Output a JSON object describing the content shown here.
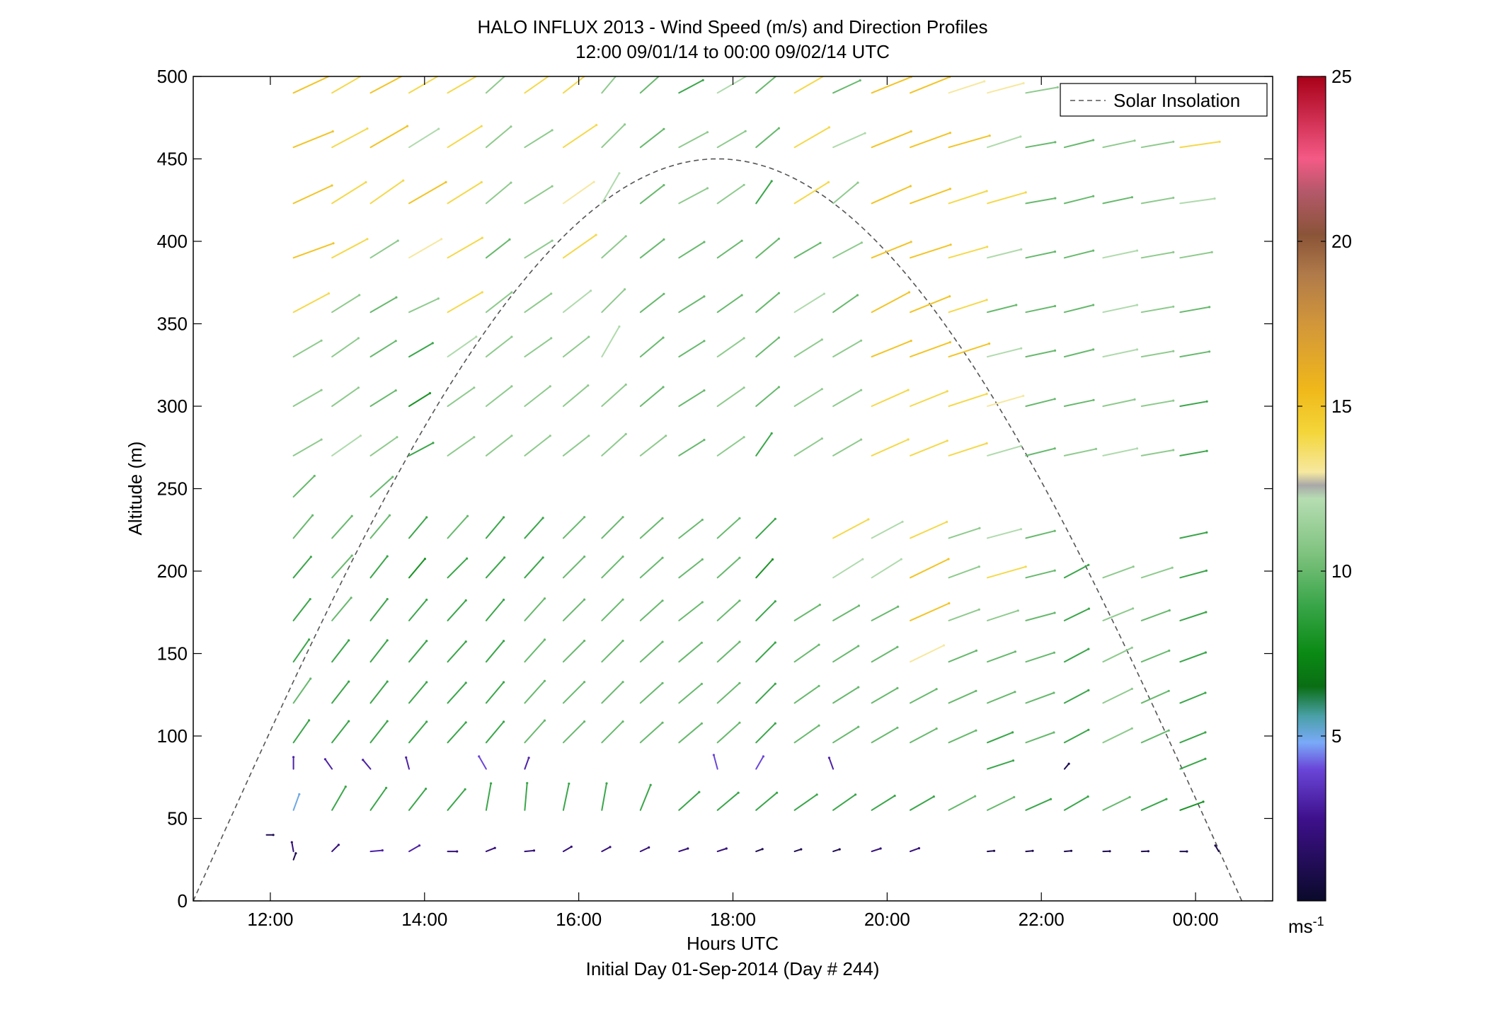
{
  "chart_data": {
    "type": "wind_barb_profile",
    "title": "HALO INFLUX 2013 - Wind Speed (m/s) and Direction Profiles",
    "subtitle": "12:00 09/01/14 to 00:00 09/02/14  UTC",
    "xlabel": "Hours UTC",
    "xlabel2": "Initial Day 01-Sep-2014 (Day # 244)",
    "ylabel": "Altitude (m)",
    "xlim": [
      11.0,
      25.0
    ],
    "ylim": [
      0,
      500
    ],
    "x_ticks": [
      12,
      14,
      16,
      18,
      20,
      22,
      24
    ],
    "x_tick_labels": [
      "12:00",
      "14:00",
      "16:00",
      "18:00",
      "20:00",
      "22:00",
      "00:00"
    ],
    "y_ticks": [
      0,
      50,
      100,
      150,
      200,
      250,
      300,
      350,
      400,
      450,
      500
    ],
    "y_tick_labels": [
      "0",
      "50",
      "100",
      "150",
      "200",
      "250",
      "300",
      "350",
      "400",
      "450",
      "500"
    ],
    "legend": {
      "entries": [
        "Solar Insolation"
      ],
      "placement": "top-right"
    },
    "colorbar": {
      "range": [
        0,
        25
      ],
      "ticks": [
        5,
        10,
        15,
        20,
        25
      ],
      "tick_labels": [
        "5",
        "10",
        "15",
        "20",
        "25"
      ],
      "unit_base": "ms",
      "unit_exp": "-1",
      "colormap": [
        {
          "v": 0,
          "c": "#0a0a2a"
        },
        {
          "v": 2.5,
          "c": "#3e108c"
        },
        {
          "v": 4.0,
          "c": "#6a46d8"
        },
        {
          "v": 4.8,
          "c": "#7aaaf8"
        },
        {
          "v": 5.6,
          "c": "#4aa0a8"
        },
        {
          "v": 6.5,
          "c": "#0a6e14"
        },
        {
          "v": 7.5,
          "c": "#0a8a14"
        },
        {
          "v": 9.0,
          "c": "#3aa64a"
        },
        {
          "v": 10.5,
          "c": "#7ec27e"
        },
        {
          "v": 12.2,
          "c": "#b6ddb2"
        },
        {
          "v": 12.6,
          "c": "#a8a8a8"
        },
        {
          "v": 13.0,
          "c": "#f6e8a0"
        },
        {
          "v": 14.2,
          "c": "#f4d63a"
        },
        {
          "v": 15.5,
          "c": "#f0b81a"
        },
        {
          "v": 17.5,
          "c": "#d2963a"
        },
        {
          "v": 19.0,
          "c": "#b07a4a"
        },
        {
          "v": 20.2,
          "c": "#8a5438"
        },
        {
          "v": 21.5,
          "c": "#b4586a"
        },
        {
          "v": 22.5,
          "c": "#f45a86"
        },
        {
          "v": 25.0,
          "c": "#a80018"
        }
      ]
    },
    "solar_insolation": {
      "x_start": 11.0,
      "x_peak": 17.8,
      "x_end": 24.6,
      "peak_altitude": 450,
      "color": "#555555",
      "dash": "dashed"
    },
    "profile_times": [
      12.3,
      12.8,
      13.3,
      13.8,
      14.3,
      14.8,
      15.3,
      15.8,
      16.3,
      16.8,
      17.3,
      17.8,
      18.3,
      18.8,
      19.3,
      19.8,
      20.3,
      20.8,
      21.3,
      21.8,
      22.3,
      22.8,
      23.3,
      23.8
    ],
    "levels": [
      {
        "alt": 490,
        "speed": [
          15,
          14,
          15,
          14,
          14,
          11,
          14,
          14,
          11,
          10,
          9,
          12,
          10,
          14,
          10,
          15,
          15,
          13,
          13,
          11,
          10,
          10,
          11,
          13
        ],
        "dir_deg": [
          65,
          60,
          62,
          60,
          60,
          48,
          55,
          52,
          40,
          48,
          62,
          60,
          50,
          60,
          65,
          68,
          68,
          72,
          75,
          80,
          76,
          78,
          80,
          82
        ]
      },
      {
        "alt": 457,
        "speed": [
          15,
          14,
          15,
          12,
          14,
          11,
          11,
          14,
          11,
          10,
          11,
          11,
          10,
          14,
          12,
          15,
          15,
          15,
          12,
          10,
          10,
          11,
          11,
          14
        ],
        "dir_deg": [
          68,
          62,
          60,
          58,
          58,
          50,
          58,
          56,
          45,
          52,
          62,
          60,
          50,
          60,
          66,
          68,
          70,
          74,
          72,
          80,
          76,
          78,
          80,
          82
        ]
      },
      {
        "alt": 423,
        "speed": [
          15,
          14,
          14,
          15,
          14,
          11,
          11,
          13,
          12,
          10,
          11,
          11,
          9,
          14,
          11,
          15,
          15,
          14,
          14,
          10,
          10,
          10,
          11,
          12
        ],
        "dir_deg": [
          65,
          58,
          55,
          60,
          58,
          50,
          58,
          55,
          30,
          52,
          62,
          55,
          35,
          58,
          50,
          66,
          70,
          72,
          74,
          80,
          76,
          78,
          80,
          82
        ]
      },
      {
        "alt": 390,
        "speed": [
          15,
          14,
          11,
          13,
          14,
          10,
          11,
          14,
          11,
          10,
          10,
          10,
          10,
          10,
          11,
          15,
          15,
          14,
          12,
          10,
          10,
          12,
          11,
          11
        ],
        "dir_deg": [
          70,
          62,
          58,
          60,
          60,
          52,
          58,
          55,
          48,
          52,
          58,
          55,
          50,
          60,
          62,
          68,
          72,
          74,
          76,
          78,
          76,
          78,
          80,
          80
        ]
      },
      {
        "alt": 357,
        "speed": [
          14,
          11,
          10,
          11,
          14,
          11,
          11,
          12,
          11,
          10,
          10,
          10,
          10,
          12,
          10,
          15,
          15,
          14,
          10,
          10,
          10,
          12,
          11,
          10
        ],
        "dir_deg": [
          62,
          58,
          60,
          65,
          60,
          52,
          55,
          52,
          45,
          52,
          58,
          55,
          50,
          58,
          55,
          62,
          68,
          72,
          76,
          78,
          76,
          78,
          80,
          80
        ]
      },
      {
        "alt": 330,
        "speed": [
          11,
          11,
          10,
          9,
          12,
          11,
          11,
          11,
          12,
          10,
          10,
          11,
          10,
          11,
          11,
          15,
          15,
          15,
          12,
          10,
          10,
          12,
          11,
          10
        ],
        "dir_deg": [
          60,
          55,
          58,
          60,
          55,
          52,
          55,
          52,
          30,
          50,
          58,
          55,
          50,
          58,
          60,
          68,
          70,
          72,
          76,
          78,
          76,
          78,
          80,
          80
        ]
      },
      {
        "alt": 300,
        "speed": [
          11,
          11,
          10,
          8,
          11,
          11,
          11,
          11,
          11,
          10,
          10,
          11,
          10,
          11,
          11,
          14,
          14,
          14,
          13,
          10,
          10,
          11,
          11,
          9
        ],
        "dir_deg": [
          60,
          55,
          58,
          58,
          55,
          52,
          52,
          50,
          48,
          50,
          58,
          55,
          50,
          58,
          60,
          66,
          68,
          72,
          74,
          76,
          78,
          78,
          80,
          80
        ]
      },
      {
        "alt": 270,
        "speed": [
          11,
          12,
          11,
          9,
          11,
          11,
          11,
          11,
          11,
          11,
          10,
          11,
          9,
          11,
          11,
          14,
          14,
          14,
          12,
          10,
          11,
          12,
          11,
          9
        ],
        "dir_deg": [
          60,
          55,
          55,
          62,
          55,
          52,
          52,
          52,
          48,
          52,
          58,
          55,
          35,
          58,
          60,
          66,
          68,
          72,
          74,
          76,
          78,
          78,
          80,
          80
        ]
      },
      {
        "alt": 245,
        "speed": [
          10,
          null,
          10,
          null,
          null,
          null,
          null,
          null,
          null,
          null,
          null,
          null,
          null,
          null,
          null,
          null,
          null,
          null,
          null,
          null,
          null,
          null,
          null,
          null
        ],
        "dir_deg": [
          45,
          null,
          48,
          null,
          null,
          null,
          null,
          null,
          null,
          null,
          null,
          null,
          null,
          null,
          null,
          null,
          null,
          null,
          null,
          null,
          null,
          null,
          null,
          null
        ]
      },
      {
        "alt": 220,
        "speed": [
          10,
          10,
          10,
          9,
          10,
          9,
          9,
          10,
          10,
          10,
          10,
          10,
          9,
          null,
          14,
          12,
          14,
          11,
          12,
          10,
          null,
          null,
          null,
          9
        ],
        "dir_deg": [
          40,
          42,
          40,
          40,
          42,
          40,
          42,
          45,
          45,
          48,
          52,
          48,
          45,
          null,
          62,
          62,
          66,
          72,
          75,
          76,
          null,
          null,
          null,
          78
        ]
      },
      {
        "alt": 196,
        "speed": [
          9,
          10,
          9,
          8,
          9,
          9,
          9,
          10,
          10,
          10,
          10,
          10,
          8,
          null,
          12,
          12,
          15,
          11,
          14,
          10,
          9,
          11,
          11,
          9
        ],
        "dir_deg": [
          40,
          42,
          38,
          40,
          45,
          42,
          42,
          45,
          45,
          48,
          52,
          48,
          42,
          null,
          58,
          58,
          64,
          70,
          74,
          76,
          62,
          70,
          72,
          75
        ]
      },
      {
        "alt": 170,
        "speed": [
          9,
          10,
          9,
          9,
          9,
          9,
          10,
          10,
          10,
          10,
          10,
          10,
          9,
          10,
          10,
          10,
          15,
          11,
          11,
          10,
          9,
          11,
          10,
          9
        ],
        "dir_deg": [
          38,
          40,
          38,
          40,
          42,
          40,
          42,
          45,
          45,
          48,
          52,
          48,
          45,
          58,
          60,
          62,
          66,
          70,
          72,
          75,
          64,
          68,
          70,
          72
        ]
      },
      {
        "alt": 145,
        "speed": [
          9,
          9,
          9,
          9,
          9,
          9,
          10,
          10,
          10,
          10,
          10,
          10,
          9,
          10,
          10,
          10,
          13,
          10,
          10,
          10,
          9,
          11,
          10,
          9
        ],
        "dir_deg": [
          35,
          38,
          38,
          40,
          42,
          40,
          42,
          45,
          45,
          48,
          50,
          48,
          45,
          55,
          58,
          60,
          64,
          68,
          70,
          72,
          62,
          64,
          68,
          70
        ]
      },
      {
        "alt": 120,
        "speed": [
          10,
          9,
          9,
          9,
          9,
          9,
          10,
          10,
          10,
          10,
          10,
          10,
          9,
          10,
          10,
          10,
          10,
          10,
          10,
          10,
          9,
          11,
          10,
          9
        ],
        "dir_deg": [
          35,
          38,
          38,
          40,
          42,
          40,
          42,
          45,
          45,
          48,
          50,
          48,
          45,
          55,
          58,
          60,
          62,
          66,
          68,
          70,
          62,
          64,
          66,
          68
        ]
      },
      {
        "alt": 96,
        "speed": [
          9,
          9,
          9,
          9,
          9,
          9,
          10,
          10,
          10,
          10,
          10,
          10,
          9,
          10,
          10,
          10,
          10,
          10,
          9,
          10,
          9,
          11,
          10,
          9
        ],
        "dir_deg": [
          35,
          38,
          38,
          40,
          42,
          40,
          42,
          45,
          45,
          48,
          50,
          48,
          45,
          55,
          58,
          60,
          62,
          66,
          68,
          70,
          62,
          64,
          66,
          68
        ]
      },
      {
        "alt": 80,
        "speed": [
          3,
          3,
          3,
          3,
          null,
          4,
          3,
          null,
          null,
          null,
          null,
          4,
          4,
          null,
          3,
          null,
          null,
          null,
          9,
          null,
          1,
          null,
          null,
          9
        ],
        "dir_deg": [
          0,
          325,
          320,
          345,
          null,
          330,
          20,
          null,
          null,
          null,
          null,
          345,
          30,
          null,
          340,
          null,
          null,
          null,
          72,
          null,
          40,
          null,
          null,
          68
        ]
      },
      {
        "alt": 55,
        "speed": [
          5,
          9,
          9,
          9,
          9,
          9,
          9,
          9,
          9,
          9,
          9,
          9,
          9,
          9,
          9,
          9,
          9,
          10,
          10,
          9,
          9,
          10,
          9,
          8
        ],
        "dir_deg": [
          20,
          30,
          35,
          38,
          40,
          10,
          5,
          12,
          10,
          22,
          48,
          50,
          50,
          55,
          55,
          58,
          60,
          62,
          64,
          66,
          60,
          64,
          66,
          70
        ]
      },
      {
        "alt": 30,
        "speed": [
          2,
          2,
          3,
          3,
          2,
          2,
          2,
          2,
          2,
          2,
          2,
          2,
          1,
          1,
          1,
          2,
          2,
          null,
          1,
          1,
          1,
          1,
          1,
          1
        ],
        "dir_deg": [
          350,
          45,
          85,
          60,
          90,
          68,
          85,
          60,
          62,
          65,
          72,
          72,
          70,
          72,
          72,
          72,
          70,
          null,
          85,
          85,
          85,
          88,
          88,
          90
        ]
      }
    ],
    "extra_barbs": [
      {
        "t": 11.95,
        "alt": 40,
        "speed": 1,
        "dir_deg": 90
      },
      {
        "t": 12.3,
        "alt": 25,
        "speed": 1,
        "dir_deg": 20
      },
      {
        "t": 24.3,
        "alt": 30,
        "speed": 1,
        "dir_deg": 330
      }
    ]
  }
}
